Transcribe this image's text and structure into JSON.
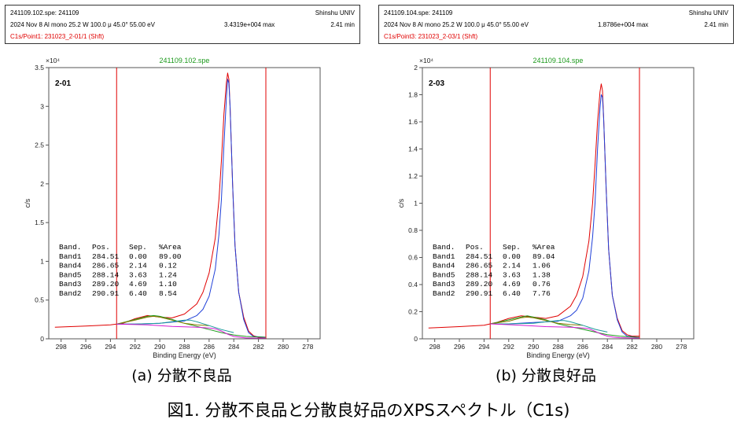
{
  "figure_caption": "図1. 分散不良品と分散良好品のXPSスペクトル（C1s)",
  "colors": {
    "red": "#e00000",
    "blue": "#1f3fd8",
    "green": "#1e9a1e",
    "magenta": "#d21ad2",
    "olive": "#8a7a00",
    "teal": "#1a9a9a",
    "raw": "#e00000"
  },
  "panels": [
    {
      "caption": "(a) 分散不良品",
      "info": {
        "file": "241109.102.spe: 241109",
        "org": "Shinshu UNIV",
        "conditions": "2024 Nov 8   Al mono  25.2 W  100.0 μ  45.0°  55.00 eV",
        "max": "3.4319e+004 max",
        "time": "2.41 min",
        "region": "C1s/Point1: 231023_2-01/1 (Shft)"
      },
      "chart_data": {
        "type": "line",
        "title": "241109.102.spe",
        "sample_label": "2-01",
        "xlabel": "Binding Energy (eV)",
        "ylabel": "c/s",
        "y_multiplier": "×10⁴",
        "xlim": [
          299,
          277
        ],
        "x_reversed": true,
        "ylim": [
          0,
          3.5
        ],
        "xticks": [
          298,
          296,
          294,
          292,
          290,
          288,
          286,
          284,
          282,
          280,
          278
        ],
        "yticks": [
          0,
          0.5,
          1,
          1.5,
          2,
          2.5,
          3,
          3.5
        ],
        "ytick_labels": [
          "0",
          "0.5",
          "1",
          "1.5",
          "2",
          "2.5",
          "3",
          "3.5"
        ],
        "region_markers": [
          293.5,
          281.4
        ],
        "series": [
          {
            "color": "red",
            "x": [
              298.5,
              296,
              294,
              293,
              292,
              291,
              290,
              289,
              288,
              287,
              286.5,
              286,
              285.5,
              285.2,
              285,
              284.8,
              284.6,
              284.5,
              284.4,
              284.3,
              284.1,
              283.9,
              283.6,
              283.2,
              282.8,
              282.4,
              282,
              281.4
            ],
            "y": [
              0.15,
              0.165,
              0.18,
              0.2,
              0.26,
              0.3,
              0.28,
              0.27,
              0.32,
              0.45,
              0.6,
              0.85,
              1.3,
              1.8,
              2.3,
              2.9,
              3.3,
              3.43,
              3.35,
              3.0,
              2.0,
              1.2,
              0.6,
              0.28,
              0.1,
              0.04,
              0.02,
              0.02
            ]
          },
          {
            "color": "blue",
            "x": [
              293.5,
              292,
              290,
              288,
              287,
              286.5,
              286,
              285.5,
              285.2,
              285,
              284.8,
              284.6,
              284.5,
              284.4,
              284.3,
              284.1,
              283.9,
              283.6,
              283.2,
              282.8,
              282.4,
              281.4
            ],
            "y": [
              0.19,
              0.19,
              0.2,
              0.23,
              0.3,
              0.38,
              0.55,
              0.9,
              1.35,
              1.8,
              2.5,
              3.1,
              3.35,
              3.3,
              3.0,
              2.0,
              1.2,
              0.6,
              0.25,
              0.08,
              0.03,
              0.02
            ]
          },
          {
            "color": "green",
            "x": [
              293.5,
              293,
              292,
              291,
              290.5,
              290,
              289,
              288,
              287,
              286,
              285,
              284,
              283,
              281.4
            ],
            "y": [
              0.19,
              0.21,
              0.25,
              0.29,
              0.3,
              0.29,
              0.25,
              0.2,
              0.16,
              0.12,
              0.08,
              0.05,
              0.03,
              0.02
            ]
          },
          {
            "color": "olive",
            "x": [
              293.5,
              292,
              291,
              290.5,
              290,
              289,
              288,
              287,
              286
            ],
            "y": [
              0.19,
              0.24,
              0.28,
              0.29,
              0.28,
              0.24,
              0.2,
              0.18,
              0.17
            ]
          },
          {
            "color": "teal",
            "x": [
              293.5,
              292,
              290,
              289,
              288,
              287.5,
              287,
              286,
              285,
              284
            ],
            "y": [
              0.19,
              0.19,
              0.2,
              0.22,
              0.24,
              0.24,
              0.22,
              0.17,
              0.12,
              0.08
            ]
          },
          {
            "color": "magenta",
            "x": [
              293.5,
              291,
              289,
              287,
              286,
              285.5,
              285,
              284.5,
              284,
              283.5,
              283,
              282,
              281.4
            ],
            "y": [
              0.19,
              0.18,
              0.16,
              0.15,
              0.14,
              0.13,
              0.1,
              0.06,
              0.03,
              0.02,
              0.01,
              0.01,
              0.01
            ]
          }
        ],
        "band_table": {
          "headers": [
            "Band.",
            "Pos.",
            "Sep.",
            "%Area"
          ],
          "rows": [
            [
              "Band1",
              "284.51",
              "0.00",
              "89.00"
            ],
            [
              "Band4",
              "286.65",
              "2.14",
              "0.12"
            ],
            [
              "Band5",
              "288.14",
              "3.63",
              "1.24"
            ],
            [
              "Band3",
              "289.20",
              "4.69",
              "1.10"
            ],
            [
              "Band2",
              "290.91",
              "6.40",
              "8.54"
            ]
          ]
        }
      }
    },
    {
      "caption": "(b) 分散良好品",
      "info": {
        "file": "241109.104.spe: 241109",
        "org": "Shinshu UNIV",
        "conditions": "2024 Nov 8   Al mono  25.2 W  100.0 μ  45.0°  55.00 eV",
        "max": "1.8786e+004 max",
        "time": "2.41 min",
        "region": "C1s/Point3: 231023_2-03/1 (Shft)"
      },
      "chart_data": {
        "type": "line",
        "title": "241109.104.spe",
        "sample_label": "2-03",
        "xlabel": "Binding Energy (eV)",
        "ylabel": "c/s",
        "y_multiplier": "×10⁴",
        "xlim": [
          299,
          277
        ],
        "x_reversed": true,
        "ylim": [
          0,
          2
        ],
        "xticks": [
          298,
          296,
          294,
          292,
          290,
          288,
          286,
          284,
          282,
          280,
          278
        ],
        "yticks": [
          0,
          0.2,
          0.4,
          0.6,
          0.8,
          1,
          1.2,
          1.4,
          1.6,
          1.8,
          2
        ],
        "ytick_labels": [
          "0",
          "0.2",
          "0.4",
          "0.6",
          "0.8",
          "1",
          "1.2",
          "1.4",
          "1.6",
          "1.8",
          "2"
        ],
        "region_markers": [
          293.5,
          281.4
        ],
        "series": [
          {
            "color": "red",
            "x": [
              298.5,
              296,
              294,
              293,
              292,
              291,
              290,
              289,
              288,
              287,
              286.5,
              286,
              285.5,
              285.2,
              285,
              284.8,
              284.6,
              284.5,
              284.4,
              284.3,
              284.1,
              283.9,
              283.6,
              283.2,
              282.8,
              282.4,
              282,
              281.4
            ],
            "y": [
              0.08,
              0.09,
              0.1,
              0.12,
              0.15,
              0.17,
              0.16,
              0.15,
              0.17,
              0.24,
              0.32,
              0.46,
              0.72,
              1.0,
              1.28,
              1.6,
              1.82,
              1.88,
              1.83,
              1.62,
              1.1,
              0.66,
              0.32,
              0.15,
              0.06,
              0.03,
              0.02,
              0.02
            ]
          },
          {
            "color": "blue",
            "x": [
              293.5,
              292,
              290,
              288,
              287,
              286.5,
              286,
              285.5,
              285.2,
              285,
              284.8,
              284.6,
              284.5,
              284.4,
              284.3,
              284.1,
              283.9,
              283.6,
              283.2,
              282.8,
              282.4,
              281.4
            ],
            "y": [
              0.11,
              0.11,
              0.12,
              0.13,
              0.17,
              0.21,
              0.3,
              0.5,
              0.75,
              1.0,
              1.4,
              1.7,
              1.8,
              1.78,
              1.62,
              1.1,
              0.66,
              0.32,
              0.14,
              0.05,
              0.02,
              0.01
            ]
          },
          {
            "color": "green",
            "x": [
              293.5,
              293,
              292,
              291,
              290.5,
              290,
              289,
              288,
              287,
              286,
              285,
              284,
              283,
              281.4
            ],
            "y": [
              0.11,
              0.12,
              0.14,
              0.16,
              0.17,
              0.16,
              0.14,
              0.11,
              0.09,
              0.07,
              0.05,
              0.03,
              0.02,
              0.01
            ]
          },
          {
            "color": "olive",
            "x": [
              293.5,
              292,
              291,
              290.5,
              290,
              289,
              288,
              287,
              286
            ],
            "y": [
              0.11,
              0.13,
              0.155,
              0.16,
              0.155,
              0.135,
              0.115,
              0.105,
              0.1
            ]
          },
          {
            "color": "teal",
            "x": [
              293.5,
              292,
              290,
              289,
              288,
              287.5,
              287,
              286,
              285,
              284
            ],
            "y": [
              0.11,
              0.11,
              0.115,
              0.125,
              0.135,
              0.135,
              0.125,
              0.1,
              0.07,
              0.05
            ]
          },
          {
            "color": "magenta",
            "x": [
              293.5,
              291,
              289,
              287,
              286,
              285.5,
              285,
              284.5,
              284,
              283.5,
              283,
              282,
              281.4
            ],
            "y": [
              0.11,
              0.1,
              0.09,
              0.085,
              0.08,
              0.075,
              0.055,
              0.035,
              0.02,
              0.012,
              0.008,
              0.006,
              0.006
            ]
          }
        ],
        "band_table": {
          "headers": [
            "Band.",
            "Pos.",
            "Sep.",
            "%Area"
          ],
          "rows": [
            [
              "Band1",
              "284.51",
              "0.00",
              "89.04"
            ],
            [
              "Band4",
              "286.65",
              "2.14",
              "1.06"
            ],
            [
              "Band5",
              "288.14",
              "3.63",
              "1.38"
            ],
            [
              "Band3",
              "289.20",
              "4.69",
              "0.76"
            ],
            [
              "Band2",
              "290.91",
              "6.40",
              "7.76"
            ]
          ]
        }
      }
    }
  ]
}
